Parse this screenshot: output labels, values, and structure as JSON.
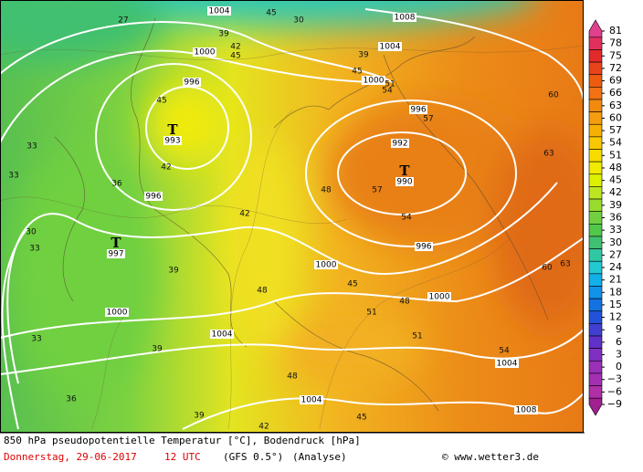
{
  "map": {
    "title": "850 hPa pseudopotentielle Temperatur [°C], Bodendruck [hPa]",
    "date": "Donnerstag, 29-06-2017",
    "time": "12 UTC",
    "model": "(GFS 0.5°)",
    "run": "(Analyse)",
    "credit": "© www.wetter3.de",
    "lows": [
      {
        "symbol": "T",
        "pressure": "993"
      },
      {
        "symbol": "T",
        "pressure": "990"
      },
      {
        "symbol": "T",
        "pressure": "997"
      }
    ],
    "isobar_labels": [
      "1004",
      "1008",
      "1004",
      "1000",
      "996",
      "1000",
      "996",
      "992",
      "996",
      "996",
      "1000",
      "1000",
      "1000",
      "1004",
      "1004",
      "1004",
      "1008"
    ],
    "temperature_labels": [
      "27",
      "30",
      "45",
      "39",
      "42",
      "45",
      "39",
      "45",
      "51",
      "54",
      "45",
      "42",
      "33",
      "33",
      "36",
      "30",
      "33",
      "39",
      "42",
      "48",
      "57",
      "57",
      "54",
      "60",
      "63",
      "60",
      "63",
      "48",
      "45",
      "51",
      "51",
      "54",
      "48",
      "39",
      "36",
      "33",
      "39",
      "45",
      "42",
      "48"
    ],
    "colorbar": {
      "labels": [
        "81",
        "78",
        "75",
        "72",
        "69",
        "66",
        "63",
        "60",
        "57",
        "54",
        "51",
        "48",
        "45",
        "42",
        "39",
        "36",
        "33",
        "30",
        "27",
        "24",
        "21",
        "18",
        "15",
        "12",
        "9",
        "6",
        "3",
        "0",
        "−3",
        "−6",
        "−9"
      ],
      "colors": [
        "#e0408c",
        "#e2305e",
        "#e22a2a",
        "#e8441c",
        "#ee5c12",
        "#f07212",
        "#f28a10",
        "#f59c10",
        "#f6b004",
        "#f8c800",
        "#f8dc00",
        "#f0ea00",
        "#dcf000",
        "#bce622",
        "#98dc30",
        "#72d040",
        "#52c84a",
        "#40c072",
        "#30c8a2",
        "#22c8d2",
        "#12b0e8",
        "#1292e8",
        "#1472e0",
        "#2252d8",
        "#4040d0",
        "#6030c8",
        "#8030c0",
        "#9830b8",
        "#a230b0",
        "#b030a8",
        "#a02090"
      ]
    }
  }
}
